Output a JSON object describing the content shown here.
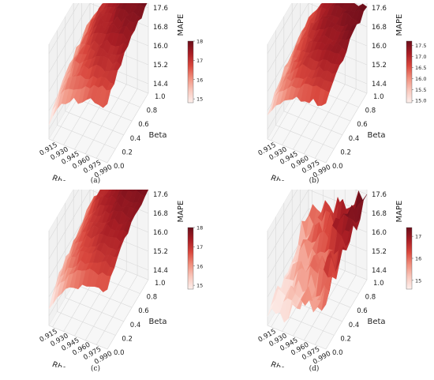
{
  "figure": {
    "captions": [
      "(a)",
      "(b)",
      "(c)",
      "(d)"
    ]
  },
  "colors": {
    "colormap": [
      "#fdf0ed",
      "#f9c8bd",
      "#f08f7d",
      "#d9473d",
      "#a81d24",
      "#6b0d1a"
    ],
    "grid": "#d9d9d9",
    "pane": "#f3f3f3",
    "text": "#222222"
  },
  "chart_data": [
    {
      "type": "surface3d",
      "panel": "(a)",
      "xlabel": "Rho A",
      "ylabel": "Beta",
      "zlabel": "MAPE",
      "x_ticks": [
        "0.915",
        "0.930",
        "0.945",
        "0.960",
        "0.975",
        "0.990"
      ],
      "y_ticks": [
        "0.0",
        "0.2",
        "0.4",
        "0.6",
        "0.8",
        "1.0"
      ],
      "z_ticks": [
        "14.4",
        "15.2",
        "16.0",
        "16.8",
        "17.6"
      ],
      "xlim": [
        0.91,
        0.99
      ],
      "ylim": [
        0.0,
        1.0
      ],
      "zlim": [
        14.0,
        18.0
      ],
      "colorbar": {
        "ticks": [
          "15",
          "16",
          "17",
          "18"
        ],
        "min": 14.8,
        "max": 18.0
      },
      "surface": {
        "zmin": 14.6,
        "zmax": 17.9,
        "rough": 0.18,
        "seed": 3,
        "shape": "rising",
        "steps": true
      }
    },
    {
      "type": "surface3d",
      "panel": "(b)",
      "xlabel": "Rho A",
      "ylabel": "Beta",
      "zlabel": "MAPE",
      "x_ticks": [
        "0.915",
        "0.930",
        "0.945",
        "0.960",
        "0.975",
        "0.990"
      ],
      "y_ticks": [
        "0.0",
        "0.2",
        "0.4",
        "0.6",
        "0.8",
        "1.0"
      ],
      "z_ticks": [
        "14.4",
        "15.2",
        "16.0",
        "16.8",
        "17.6"
      ],
      "xlim": [
        0.91,
        0.99
      ],
      "ylim": [
        0.0,
        1.0
      ],
      "zlim": [
        14.0,
        18.0
      ],
      "colorbar": {
        "ticks": [
          "15.0",
          "15.5",
          "16.0",
          "16.5",
          "17.0",
          "17.5"
        ],
        "min": 14.9,
        "max": 17.7
      },
      "surface": {
        "zmin": 14.9,
        "zmax": 17.7,
        "rough": 0.2,
        "seed": 11,
        "shape": "rising",
        "steps": true
      }
    },
    {
      "type": "surface3d",
      "panel": "(c)",
      "xlabel": "Rho A",
      "ylabel": "Beta",
      "zlabel": "MAPE",
      "x_ticks": [
        "0.915",
        "0.930",
        "0.945",
        "0.960",
        "0.975",
        "0.990"
      ],
      "y_ticks": [
        "0.0",
        "0.2",
        "0.4",
        "0.6",
        "0.8",
        "1.0"
      ],
      "z_ticks": [
        "14.4",
        "15.2",
        "16.0",
        "16.8",
        "17.6"
      ],
      "xlim": [
        0.91,
        0.99
      ],
      "ylim": [
        0.0,
        1.0
      ],
      "zlim": [
        14.0,
        18.0
      ],
      "colorbar": {
        "ticks": [
          "15",
          "16",
          "17",
          "18"
        ],
        "min": 14.8,
        "max": 18.0
      },
      "surface": {
        "zmin": 14.7,
        "zmax": 17.9,
        "rough": 0.16,
        "seed": 7,
        "shape": "rising",
        "steps": true
      }
    },
    {
      "type": "surface3d",
      "panel": "(d)",
      "xlabel": "Rho A",
      "ylabel": "Beta",
      "zlabel": "MAPE",
      "x_ticks": [
        "0.915",
        "0.930",
        "0.945",
        "0.960",
        "0.975",
        "0.990"
      ],
      "y_ticks": [
        "0.0",
        "0.2",
        "0.4",
        "0.6",
        "0.8",
        "1.0"
      ],
      "z_ticks": [
        "14.4",
        "15.2",
        "16.0",
        "16.8",
        "17.6"
      ],
      "xlim": [
        0.91,
        0.99
      ],
      "ylim": [
        0.0,
        1.0
      ],
      "zlim": [
        14.0,
        18.0
      ],
      "colorbar": {
        "ticks": [
          "15",
          "16",
          "17"
        ],
        "min": 14.6,
        "max": 17.4
      },
      "surface": {
        "zmin": 14.3,
        "zmax": 17.6,
        "rough": 0.55,
        "seed": 19,
        "shape": "diagonal",
        "steps": false
      }
    }
  ]
}
